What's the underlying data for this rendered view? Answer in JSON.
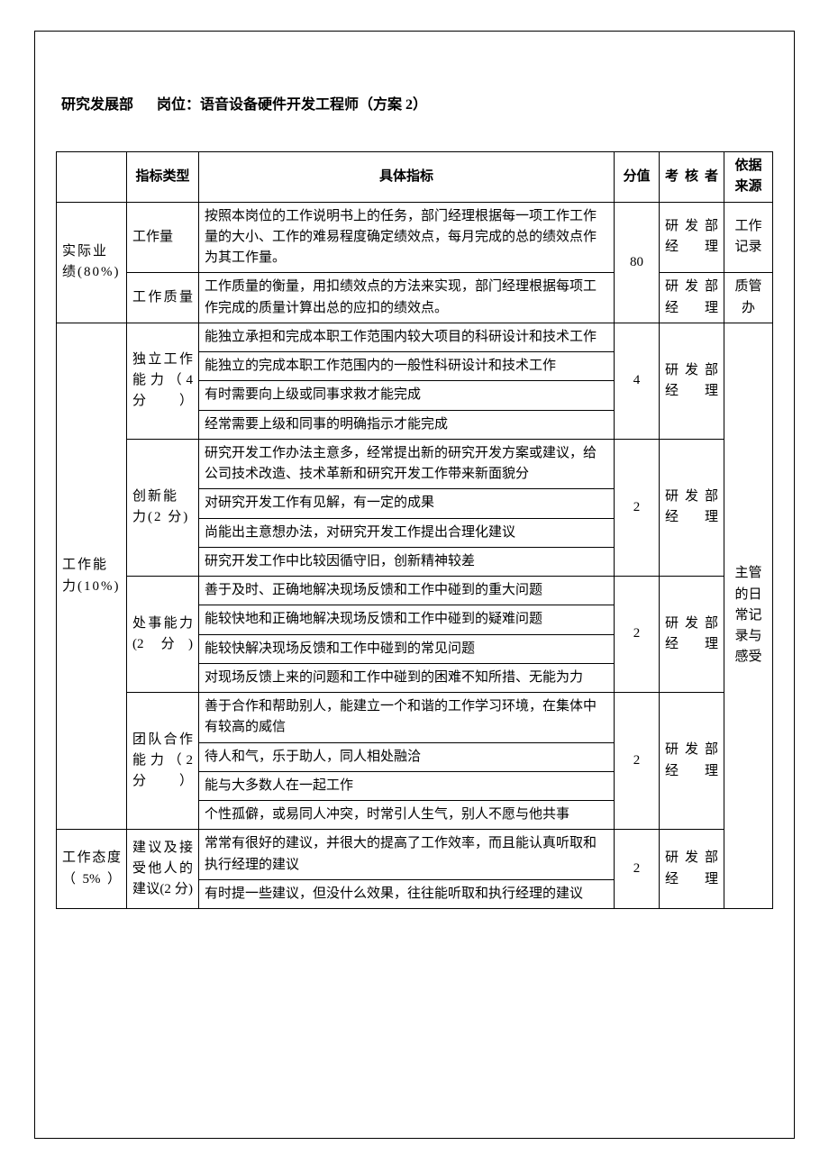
{
  "header": {
    "department": "研究发展部",
    "position_label": "岗位：",
    "position_value": "语音设备硬件开发工程师（方案 2）"
  },
  "columns": {
    "category": "",
    "type": "指标类型",
    "indicator": "具体指标",
    "score": "分值",
    "assessor": "考核者",
    "source": "依据来源"
  },
  "assessor_text": "研发部经理",
  "sources": {
    "work_record": "工作记录",
    "quality_office": "质管办",
    "supervisor_diary": "主管的日常记录与感受"
  },
  "sections": [
    {
      "category": "实际业绩(80%)",
      "score": "80",
      "rows": [
        {
          "type": "工作量",
          "indicators": [
            "按照本岗位的工作说明书上的任务，部门经理根据每一项工作工作量的大小、工作的难易程度确定绩效点，每月完成的总的绩效点作为其工作量。"
          ],
          "source_key": "work_record"
        },
        {
          "type": "工作质量",
          "indicators": [
            "工作质量的衡量，用扣绩效点的方法来实现，部门经理根据每项工作完成的质量计算出总的应扣的绩效点。"
          ],
          "source_key": "quality_office"
        }
      ]
    },
    {
      "category": "工作能力(10%)",
      "rows": [
        {
          "type": "独立工作能力（4 分）",
          "score": "4",
          "indicators": [
            "能独立承担和完成本职工作范围内较大项目的科研设计和技术工作",
            "能独立的完成本职工作范围内的一般性科研设计和技术工作",
            "有时需要向上级或同事求救才能完成",
            "经常需要上级和同事的明确指示才能完成"
          ]
        },
        {
          "type": "创新能力(2 分)",
          "score": "2",
          "indicators": [
            "研究开发工作办法主意多，经常提出新的研究开发方案或建议，给公司技术改造、技术革新和研究开发工作带来新面貌分",
            "对研究开发工作有见解，有一定的成果",
            "尚能出主意想办法，对研究开发工作提出合理化建议",
            "研究开发工作中比较因循守旧，创新精神较差"
          ]
        },
        {
          "type": "处事能力(2 分)",
          "score": "2",
          "indicators": [
            "善于及时、正确地解决现场反馈和工作中碰到的重大问题",
            "能较快地和正确地解决现场反馈和工作中碰到的疑难问题",
            "能较快解决现场反馈和工作中碰到的常见问题",
            "对现场反馈上来的问题和工作中碰到的困难不知所措、无能为力"
          ]
        },
        {
          "type": "团队合作能力（2 分）",
          "score": "2",
          "indicators": [
            "善于合作和帮助别人，能建立一个和谐的工作学习环境，在集体中有较高的威信",
            "待人和气，乐于助人，同人相处融洽",
            "能与大多数人在一起工作",
            "个性孤僻，或易同人冲突，时常引人生气，别人不愿与他共事"
          ]
        }
      ]
    },
    {
      "category": "工作态度（5%）",
      "rows": [
        {
          "type": "建议及接受他人的建议(2 分)",
          "score": "2",
          "indicators": [
            "常常有很好的建议，并很大的提高了工作效率，而且能认真听取和执行经理的建议",
            "有时提一些建议，但没什么效果，往往能听取和执行经理的建议"
          ]
        }
      ]
    }
  ]
}
